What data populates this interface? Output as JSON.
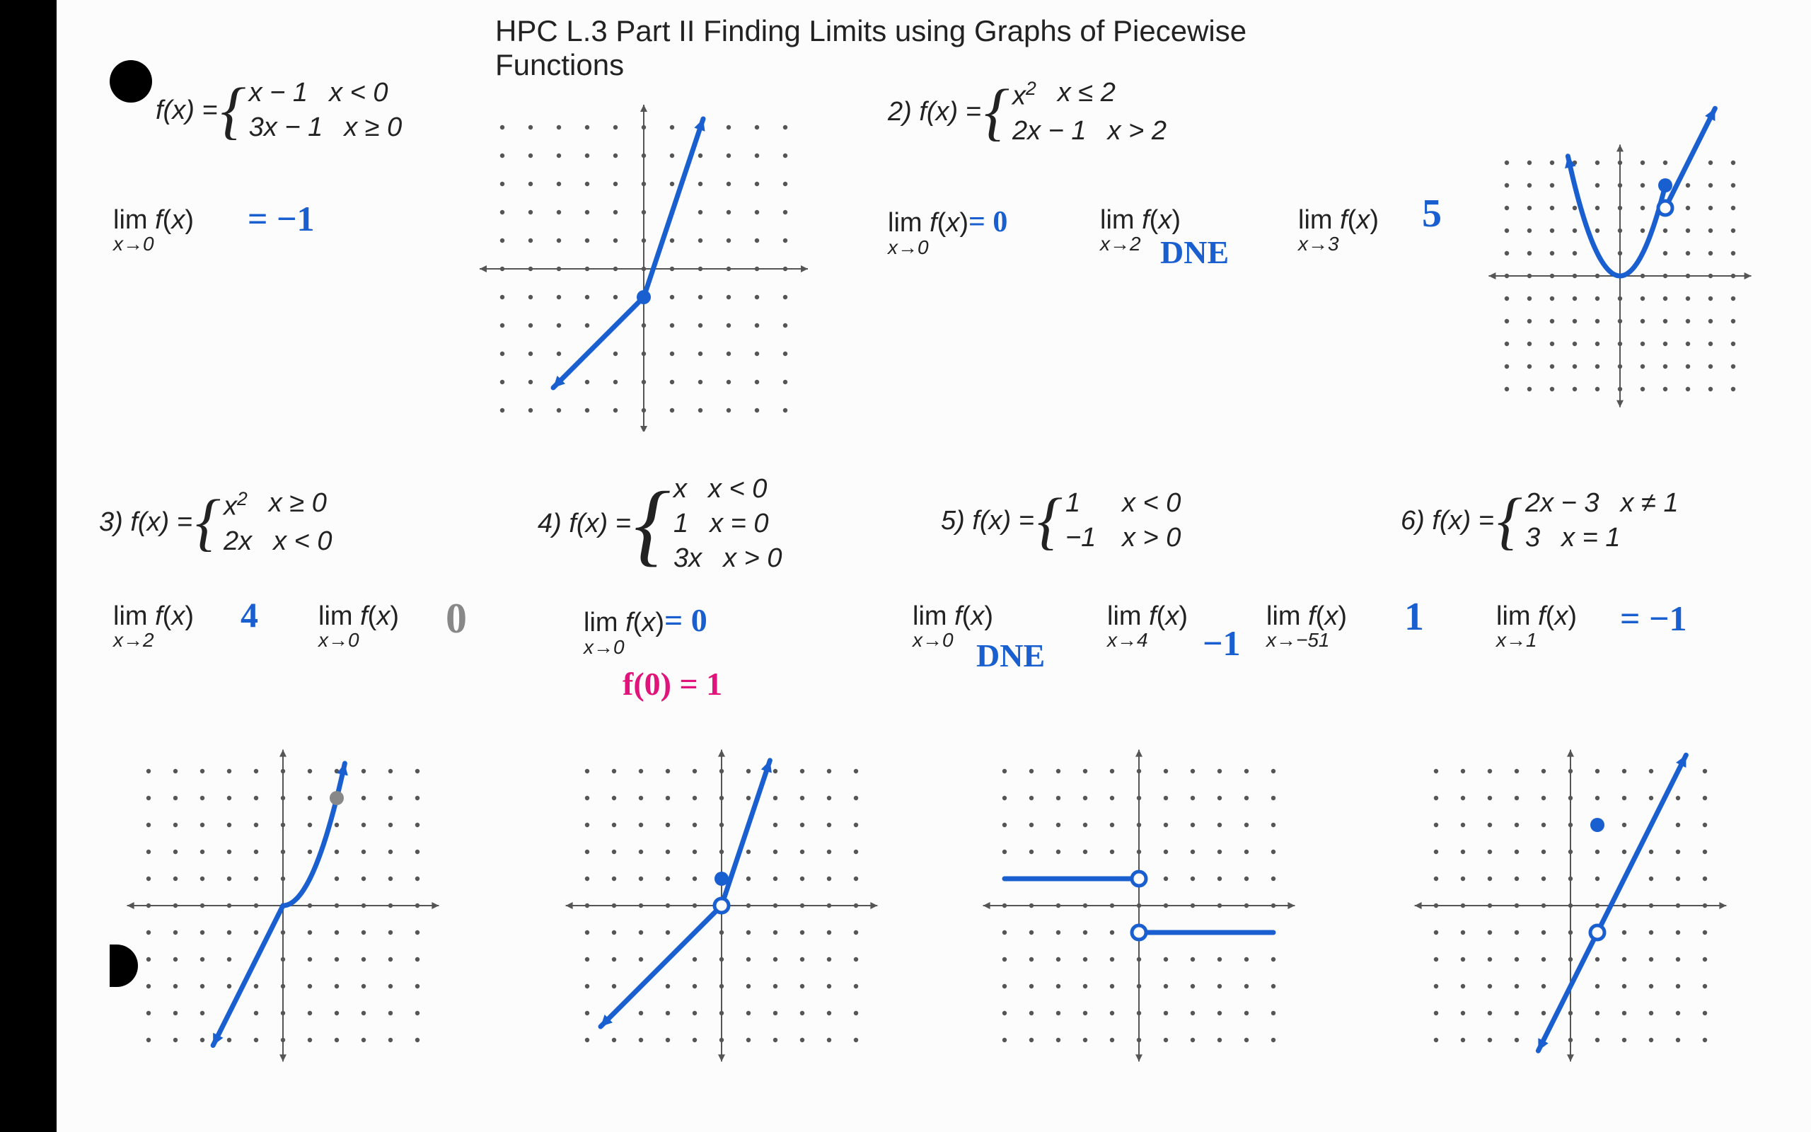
{
  "title": "HPC L.3 Part II Finding Limits using Graphs of Piecewise Functions",
  "colors": {
    "ink_blue": "#1a5fd0",
    "ink_pink": "#e0147a",
    "ink_gray": "#888888",
    "axis": "#555555",
    "dot": "#555555",
    "text": "#222222",
    "page": "#fcfcfc",
    "bg": "#000000"
  },
  "graph_style": {
    "dot_radius": 3.2,
    "dot_spacing": 30,
    "cells_each_side": 5,
    "axis_width": 2,
    "stroke_width": 7,
    "arrow_size": 16,
    "open_circle_r": 10,
    "closed_circle_r": 10
  },
  "problems": {
    "p1": {
      "label": "f(x) =",
      "rows": [
        {
          "expr": "x − 1",
          "cond": "x < 0"
        },
        {
          "expr": "3x − 1",
          "cond": "x ≥ 0"
        }
      ],
      "limits": [
        {
          "approach": "x→0",
          "answer": "= −1",
          "answer_color": "ink_blue"
        }
      ],
      "graph": {
        "type": "piecewise-line",
        "curves": [
          {
            "kind": "line",
            "from": [
              -3.2,
              -4.2
            ],
            "to": [
              0,
              -1
            ],
            "arrow_start": true
          },
          {
            "kind": "line",
            "from": [
              0,
              -1
            ],
            "to": [
              2.1,
              5.3
            ],
            "arrow_end": true
          }
        ],
        "points": [
          {
            "at": [
              0,
              -1
            ],
            "style": "closed"
          }
        ]
      }
    },
    "p2": {
      "label": "2)  f(x) =",
      "rows": [
        {
          "expr": "x²",
          "cond": "x ≤ 2"
        },
        {
          "expr": "2x − 1",
          "cond": "x > 2"
        }
      ],
      "limits": [
        {
          "approach": "x→0",
          "answer": "= 0",
          "top_inline": true,
          "answer_color": "ink_blue"
        },
        {
          "approach": "x→2",
          "answer": "DNE",
          "answer_color": "ink_blue"
        },
        {
          "approach": "x→3",
          "answer": "5",
          "answer_color": "ink_blue"
        }
      ],
      "graph": {
        "type": "parabola+line",
        "curves": [
          {
            "kind": "parabola",
            "vertex": [
              0,
              0
            ],
            "a": 1,
            "xrange": [
              -2.3,
              2
            ],
            "arrow_start": true
          },
          {
            "kind": "line",
            "from": [
              2,
              3
            ],
            "to": [
              4.2,
              7.4
            ],
            "arrow_end": true
          }
        ],
        "points": [
          {
            "at": [
              2,
              4
            ],
            "style": "closed"
          },
          {
            "at": [
              2,
              3
            ],
            "style": "open"
          }
        ]
      }
    },
    "p3": {
      "label": "3)  f(x) =",
      "rows": [
        {
          "expr": "x²",
          "cond": "x ≥ 0"
        },
        {
          "expr": "2x",
          "cond": "x < 0"
        }
      ],
      "limits": [
        {
          "approach": "x→2",
          "answer": "4",
          "answer_color": "ink_blue"
        },
        {
          "approach": "x→0",
          "answer": "0",
          "answer_color": "ink_gray"
        }
      ],
      "graph": {
        "type": "line+parabola",
        "curves": [
          {
            "kind": "line",
            "from": [
              -2.6,
              -5.2
            ],
            "to": [
              0,
              0
            ],
            "arrow_start": true
          },
          {
            "kind": "parabola",
            "vertex": [
              0,
              0
            ],
            "a": 1,
            "xrange": [
              0,
              2.3
            ],
            "arrow_end": true
          }
        ],
        "points": [
          {
            "at": [
              2,
              4
            ],
            "style": "closed",
            "color": "#888888"
          }
        ]
      }
    },
    "p4": {
      "label": "4)    f(x) =",
      "rows": [
        {
          "expr": "x",
          "cond": "x < 0"
        },
        {
          "expr": "1",
          "cond": "x = 0"
        },
        {
          "expr": "3x",
          "cond": "x > 0"
        }
      ],
      "limits": [
        {
          "approach": "x→0",
          "answer": "= 0",
          "answer_color": "ink_blue"
        }
      ],
      "extra": {
        "text": "f(0) = 1",
        "color": "ink_pink"
      },
      "graph": {
        "type": "piecewise-line-3",
        "curves": [
          {
            "kind": "line",
            "from": [
              -4.5,
              -4.5
            ],
            "to": [
              0,
              0
            ],
            "arrow_start": true
          },
          {
            "kind": "line",
            "from": [
              0,
              0
            ],
            "to": [
              1.8,
              5.4
            ],
            "arrow_end": true
          }
        ],
        "points": [
          {
            "at": [
              0,
              0
            ],
            "style": "open"
          },
          {
            "at": [
              0,
              1
            ],
            "style": "closed"
          }
        ]
      }
    },
    "p5": {
      "label": "5)  f(x) =",
      "rows": [
        {
          "expr": "1",
          "cond": "x < 0"
        },
        {
          "expr": "−1",
          "cond": "x > 0"
        }
      ],
      "limits": [
        {
          "approach": "x→0",
          "answer": "DNE",
          "answer_color": "ink_blue"
        },
        {
          "approach": "x→4",
          "answer": "−1",
          "answer_color": "ink_blue"
        },
        {
          "approach": "x→−51",
          "answer": "1",
          "answer_color": "ink_blue"
        }
      ],
      "graph": {
        "type": "step",
        "curves": [
          {
            "kind": "line",
            "from": [
              -5,
              1
            ],
            "to": [
              0,
              1
            ]
          },
          {
            "kind": "line",
            "from": [
              0,
              -1
            ],
            "to": [
              5,
              -1
            ]
          }
        ],
        "points": [
          {
            "at": [
              0,
              1
            ],
            "style": "open"
          },
          {
            "at": [
              0,
              -1
            ],
            "style": "open"
          }
        ]
      }
    },
    "p6": {
      "label": "6)  f(x) =",
      "rows": [
        {
          "expr": "2x − 3",
          "cond": "x ≠ 1"
        },
        {
          "expr": "3",
          "cond": "x = 1"
        }
      ],
      "limits": [
        {
          "approach": "x→1",
          "answer": "= −1",
          "answer_color": "ink_blue"
        }
      ],
      "graph": {
        "type": "line-hole",
        "curves": [
          {
            "kind": "line",
            "from": [
              -1.2,
              -5.4
            ],
            "to": [
              4.3,
              5.6
            ],
            "arrow_start": true,
            "arrow_end": true
          }
        ],
        "points": [
          {
            "at": [
              1,
              -1
            ],
            "style": "open"
          },
          {
            "at": [
              1,
              3
            ],
            "style": "closed"
          }
        ]
      }
    }
  }
}
